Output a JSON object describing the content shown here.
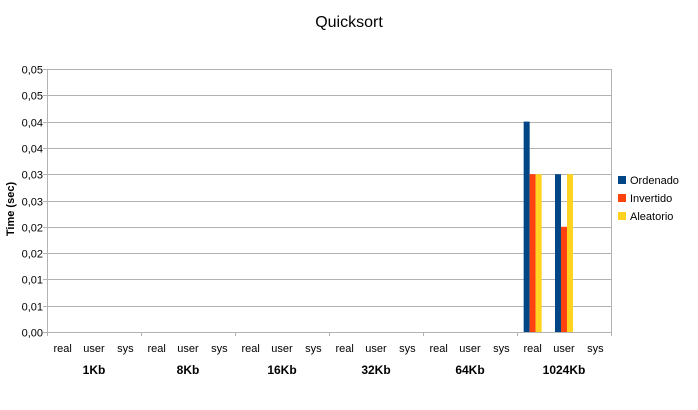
{
  "chart_data": {
    "type": "bar",
    "title": "Quicksort",
    "ylabel": "Time (sec)",
    "xlabel": "",
    "ylim": [
      0,
      0.05
    ],
    "grid": true,
    "legend_position": "right",
    "y_ticks": [
      0,
      0.005,
      0.01,
      0.015,
      0.02,
      0.025,
      0.03,
      0.035,
      0.04,
      0.045,
      0.05
    ],
    "y_tick_labels": [
      "0,00",
      "0,01",
      "0,01",
      "0,02",
      "0,02",
      "0,03",
      "0,03",
      "0,04",
      "0,04",
      "0,05",
      "0,05"
    ],
    "groups": [
      "1Kb",
      "8Kb",
      "16Kb",
      "32Kb",
      "64Kb",
      "1024Kb"
    ],
    "categories": [
      "real",
      "user",
      "sys"
    ],
    "series": [
      {
        "name": "Ordenado",
        "color": "#004586",
        "values": [
          [
            0,
            0,
            0
          ],
          [
            0,
            0,
            0
          ],
          [
            0,
            0,
            0
          ],
          [
            0,
            0,
            0
          ],
          [
            0,
            0,
            0
          ],
          [
            0.04,
            0.03,
            0
          ]
        ]
      },
      {
        "name": "Invertido",
        "color": "#ff420e",
        "values": [
          [
            0,
            0,
            0
          ],
          [
            0,
            0,
            0
          ],
          [
            0,
            0,
            0
          ],
          [
            0,
            0,
            0
          ],
          [
            0,
            0,
            0
          ],
          [
            0.03,
            0.02,
            0
          ]
        ]
      },
      {
        "name": "Aleatorio",
        "color": "#ffd320",
        "values": [
          [
            0,
            0,
            0
          ],
          [
            0,
            0,
            0
          ],
          [
            0,
            0,
            0
          ],
          [
            0,
            0,
            0
          ],
          [
            0,
            0,
            0
          ],
          [
            0.03,
            0.03,
            0
          ]
        ]
      }
    ]
  }
}
